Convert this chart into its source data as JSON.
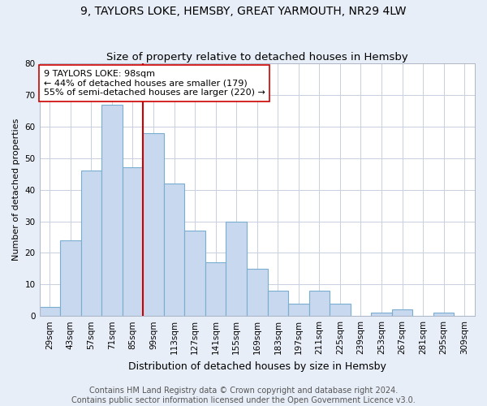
{
  "title1": "9, TAYLORS LOKE, HEMSBY, GREAT YARMOUTH, NR29 4LW",
  "title2": "Size of property relative to detached houses in Hemsby",
  "xlabel": "Distribution of detached houses by size in Hemsby",
  "ylabel": "Number of detached properties",
  "categories": [
    "29sqm",
    "43sqm",
    "57sqm",
    "71sqm",
    "85sqm",
    "99sqm",
    "113sqm",
    "127sqm",
    "141sqm",
    "155sqm",
    "169sqm",
    "183sqm",
    "197sqm",
    "211sqm",
    "225sqm",
    "239sqm",
    "253sqm",
    "267sqm",
    "281sqm",
    "295sqm",
    "309sqm"
  ],
  "values": [
    3,
    24,
    46,
    67,
    47,
    58,
    42,
    27,
    17,
    30,
    15,
    8,
    4,
    8,
    4,
    0,
    1,
    2,
    0,
    1,
    0
  ],
  "bar_color": "#c8d8ee",
  "bar_edge_color": "#7aaed0",
  "vline_color": "#cc0000",
  "annotation_text": "9 TAYLORS LOKE: 98sqm\n← 44% of detached houses are smaller (179)\n55% of semi-detached houses are larger (220) →",
  "annotation_box_color": "#ffffff",
  "annotation_box_edge": "#cc0000",
  "ylim": [
    0,
    80
  ],
  "yticks": [
    0,
    10,
    20,
    30,
    40,
    50,
    60,
    70,
    80
  ],
  "footer1": "Contains HM Land Registry data © Crown copyright and database right 2024.",
  "footer2": "Contains public sector information licensed under the Open Government Licence v3.0.",
  "bg_color": "#e8eef8",
  "plot_bg_color": "#ffffff",
  "grid_color": "#c8d0e0",
  "title1_fontsize": 10,
  "title2_fontsize": 9.5,
  "xlabel_fontsize": 9,
  "ylabel_fontsize": 8,
  "tick_fontsize": 7.5,
  "annotation_fontsize": 8,
  "footer_fontsize": 7
}
